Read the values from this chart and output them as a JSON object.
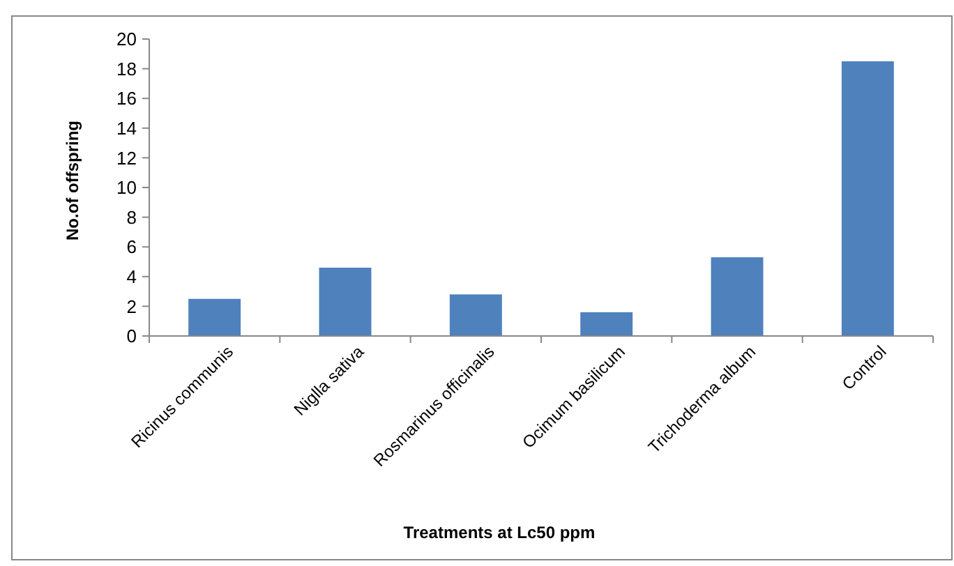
{
  "chart_data": {
    "type": "bar",
    "xlabel": "Treatments at Lc50 ppm",
    "ylabel": "No.of offspring",
    "categories": [
      "Ricinus communis",
      "Niglla sativa",
      "Rosmarinus officinalis",
      "Ocimum basilicum",
      "Trichoderma album",
      "Control"
    ],
    "values": [
      2.5,
      4.6,
      2.8,
      1.6,
      5.3,
      18.5
    ],
    "color": "#4f81bd",
    "ylim": [
      0,
      20
    ],
    "yticks": [
      0,
      2,
      4,
      6,
      8,
      10,
      12,
      14,
      16,
      18,
      20
    ],
    "grid": false
  }
}
